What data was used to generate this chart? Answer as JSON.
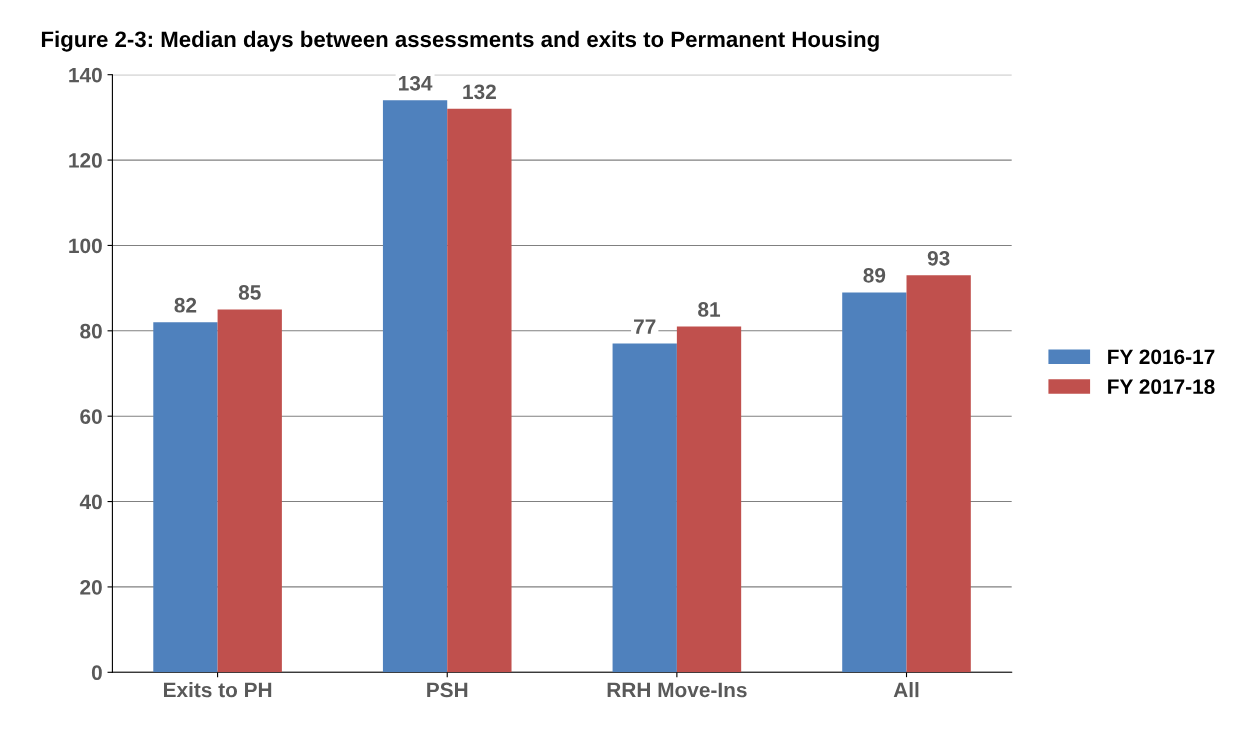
{
  "chart_data": {
    "type": "bar",
    "title": "Figure 2-3: Median days between assessments and exits to Permanent Housing",
    "categories": [
      "Exits to PH",
      "PSH",
      "RRH Move-Ins",
      "All"
    ],
    "series": [
      {
        "name": "FY 2016-17",
        "color": "#4f81bd",
        "values": [
          82,
          134,
          77,
          89
        ]
      },
      {
        "name": "FY 2017-18",
        "color": "#c0504d",
        "values": [
          85,
          132,
          81,
          93
        ]
      }
    ],
    "ylim": [
      0,
      140
    ],
    "yticks": [
      0,
      20,
      40,
      60,
      80,
      100,
      120,
      140
    ],
    "grid": "y",
    "legend": "right",
    "data_labels": true
  }
}
